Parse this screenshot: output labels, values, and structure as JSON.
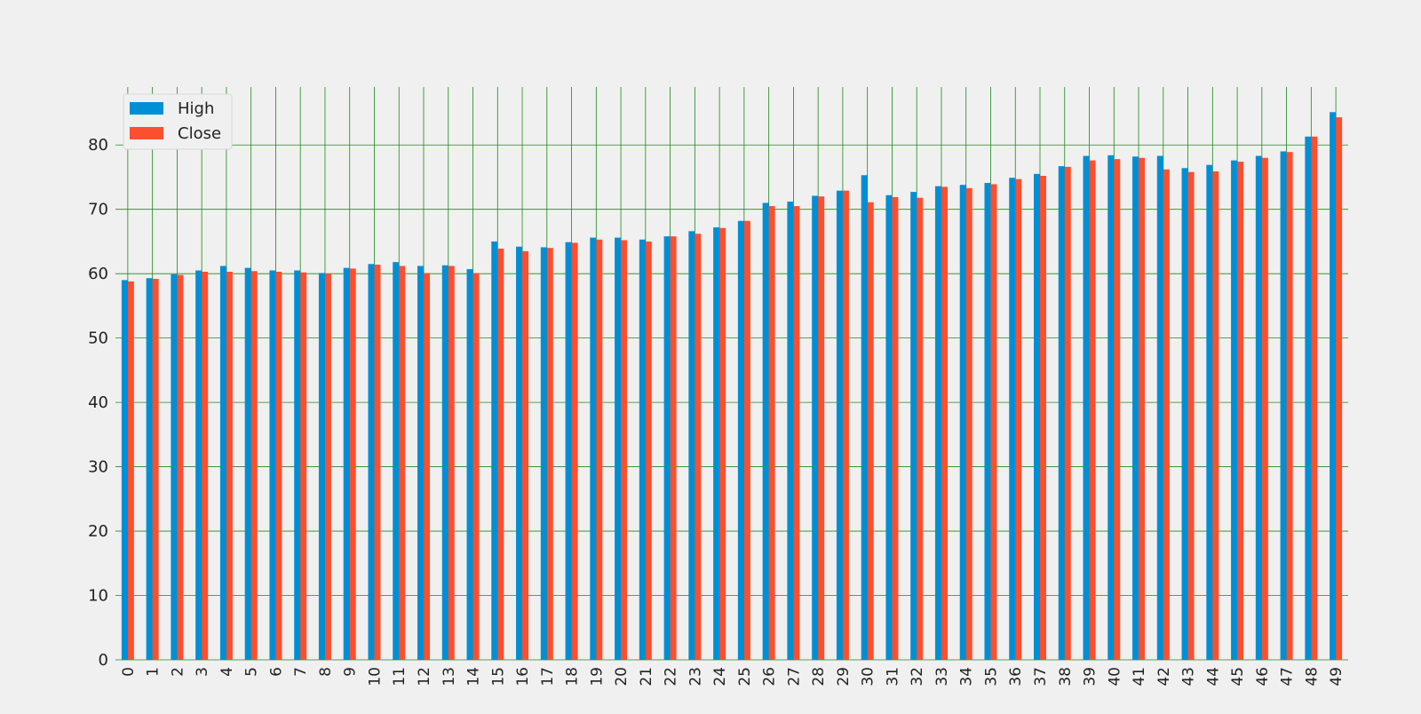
{
  "chart_data": {
    "type": "bar",
    "title": "",
    "xlabel": "",
    "ylabel": "",
    "categories": [
      "0",
      "1",
      "2",
      "3",
      "4",
      "5",
      "6",
      "7",
      "8",
      "9",
      "10",
      "11",
      "12",
      "13",
      "14",
      "15",
      "16",
      "17",
      "18",
      "19",
      "20",
      "21",
      "22",
      "23",
      "24",
      "25",
      "26",
      "27",
      "28",
      "29",
      "30",
      "31",
      "32",
      "33",
      "34",
      "35",
      "36",
      "37",
      "38",
      "39",
      "40",
      "41",
      "42",
      "43",
      "44",
      "45",
      "46",
      "47",
      "48",
      "49"
    ],
    "series": [
      {
        "name": "High",
        "color": "#008fd5",
        "values": [
          59.0,
          59.3,
          59.9,
          60.5,
          61.2,
          60.9,
          60.5,
          60.5,
          60.1,
          60.9,
          61.5,
          61.8,
          61.2,
          61.3,
          60.7,
          65.0,
          64.2,
          64.1,
          64.9,
          65.6,
          65.6,
          65.3,
          65.8,
          66.6,
          67.2,
          68.2,
          71.0,
          71.2,
          72.1,
          72.9,
          75.3,
          72.2,
          72.7,
          73.6,
          73.8,
          74.1,
          74.9,
          75.5,
          76.7,
          78.3,
          78.4,
          78.2,
          78.3,
          76.4,
          76.9,
          77.6,
          78.3,
          79.0,
          81.3,
          85.1
        ]
      },
      {
        "name": "Close",
        "color": "#fc4f30",
        "values": [
          58.8,
          59.2,
          59.8,
          60.3,
          60.3,
          60.4,
          60.3,
          60.2,
          60.0,
          60.8,
          61.4,
          61.2,
          60.1,
          61.2,
          60.1,
          63.9,
          63.5,
          64.0,
          64.8,
          65.3,
          65.2,
          65.0,
          65.8,
          66.2,
          67.1,
          68.2,
          70.5,
          70.5,
          72.0,
          72.9,
          71.1,
          71.9,
          71.8,
          73.5,
          73.3,
          73.9,
          74.7,
          75.2,
          76.6,
          77.6,
          77.8,
          78.0,
          76.2,
          75.8,
          75.9,
          77.4,
          78.0,
          78.9,
          81.3,
          84.3
        ]
      }
    ],
    "ylim": [
      0,
      89
    ],
    "yticks": [
      0,
      10,
      20,
      30,
      40,
      50,
      60,
      70,
      80
    ],
    "grid": true,
    "grid_color": "#1a8a1a",
    "background": "#f0f0f0",
    "legend": {
      "position": "top-left",
      "entries": [
        "High",
        "Close"
      ]
    }
  }
}
